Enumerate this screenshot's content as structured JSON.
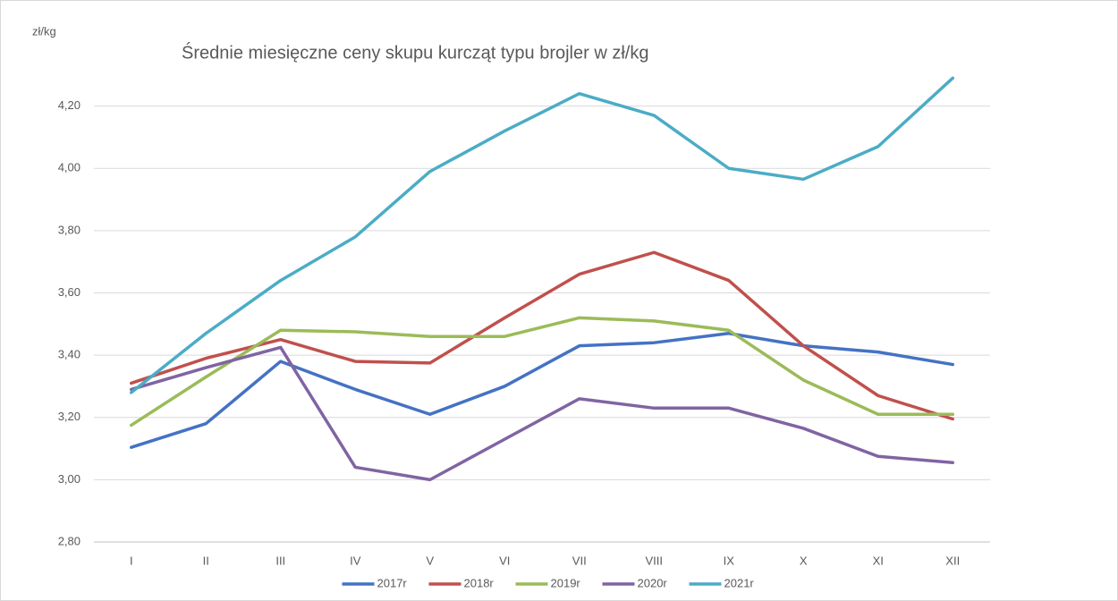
{
  "chart_data": {
    "type": "line",
    "title": "Średnie miesięczne ceny skupu kurcząt typu brojler w zł/kg",
    "y_label": "zł/kg",
    "categories": [
      "I",
      "II",
      "III",
      "IV",
      "V",
      "VI",
      "VII",
      "VIII",
      "IX",
      "X",
      "XI",
      "XII"
    ],
    "series": [
      {
        "name": "2017r",
        "color": "#4472c4",
        "values": [
          3.104,
          3.18,
          3.38,
          3.29,
          3.21,
          3.3,
          3.43,
          3.44,
          3.47,
          3.43,
          3.41,
          3.37
        ]
      },
      {
        "name": "2018r",
        "color": "#c0504d",
        "values": [
          3.31,
          3.39,
          3.45,
          3.38,
          3.375,
          3.52,
          3.66,
          3.73,
          3.64,
          3.43,
          3.27,
          3.195
        ]
      },
      {
        "name": "2019r",
        "color": "#9bbb59",
        "values": [
          3.175,
          3.33,
          3.48,
          3.475,
          3.46,
          3.46,
          3.52,
          3.51,
          3.48,
          3.32,
          3.21,
          3.21
        ]
      },
      {
        "name": "2020r",
        "color": "#8064a2",
        "values": [
          3.29,
          3.36,
          3.425,
          3.04,
          3.0,
          3.13,
          3.26,
          3.23,
          3.23,
          3.165,
          3.075,
          3.055
        ]
      },
      {
        "name": "2021r",
        "color": "#4bacc6",
        "values": [
          3.28,
          3.47,
          3.64,
          3.78,
          3.99,
          4.12,
          4.24,
          4.17,
          4.0,
          3.965,
          4.07,
          4.29
        ]
      }
    ],
    "ylim": [
      2.8,
      4.4
    ],
    "yticks": [
      {
        "value": 2.8,
        "label": "2,80"
      },
      {
        "value": 3.0,
        "label": "3,00"
      },
      {
        "value": 3.2,
        "label": "3,20"
      },
      {
        "value": 3.4,
        "label": "3,40"
      },
      {
        "value": 3.6,
        "label": "3,60"
      },
      {
        "value": 3.8,
        "label": "3,80"
      },
      {
        "value": 4.0,
        "label": "4,00"
      },
      {
        "value": 4.2,
        "label": "4,20"
      }
    ],
    "grid": true,
    "legend": "bottom"
  }
}
